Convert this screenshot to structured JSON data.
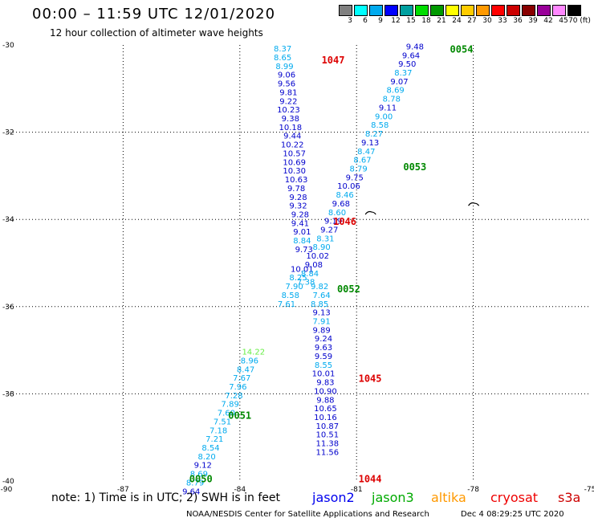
{
  "header": {
    "title": "00:00 – 11:59 UTC 12/01/2020",
    "subtitle": "12 hour collection of altimeter wave heights"
  },
  "colorbar": {
    "colors": [
      "#808080",
      "#00ffff",
      "#00aaee",
      "#0000ff",
      "#00a0a0",
      "#00dd00",
      "#009900",
      "#ffff00",
      "#ffcc00",
      "#ff9900",
      "#ff0000",
      "#cc0000",
      "#880000",
      "#990099",
      "#ff88ff",
      "#000000"
    ],
    "labels": [
      "3",
      "6",
      "9",
      "12",
      "15",
      "18",
      "21",
      "24",
      "27",
      "30",
      "33",
      "36",
      "39",
      "42",
      "45",
      "70 (ft)"
    ]
  },
  "map": {
    "lon_ticks": [
      "-90",
      "-87",
      "-84",
      "-81",
      "-78",
      "-75"
    ],
    "lat_ticks": [
      "-30",
      "-32",
      "-34",
      "-36",
      "-38",
      "-40"
    ],
    "pass_labels": [
      {
        "text": "1047",
        "color": "#dd0000",
        "lon": -81.9,
        "lat": -30.35
      },
      {
        "text": "0054",
        "color": "#008800",
        "lon": -78.6,
        "lat": -30.1
      },
      {
        "text": "0053",
        "color": "#008800",
        "lon": -79.8,
        "lat": -32.8
      },
      {
        "text": "1046",
        "color": "#dd0000",
        "lon": -81.6,
        "lat": -34.05
      },
      {
        "text": "0052",
        "color": "#008800",
        "lon": -81.5,
        "lat": -35.6
      },
      {
        "text": "1045",
        "color": "#dd0000",
        "lon": -80.95,
        "lat": -37.65
      },
      {
        "text": "0051",
        "color": "#008800",
        "lon": -84.3,
        "lat": -38.5
      },
      {
        "text": "0050",
        "color": "#008800",
        "lon": -85.3,
        "lat": -39.95
      },
      {
        "text": "1044",
        "color": "#dd0000",
        "lon": -80.95,
        "lat": -39.95
      }
    ],
    "tracks": [
      {
        "name": "1047",
        "points": [
          {
            "v": "8.37",
            "c": "#00aaee",
            "lon": -82.9,
            "lat": -30.15
          },
          {
            "v": "8.65",
            "c": "#00aaee",
            "lon": -82.9,
            "lat": -30.35
          },
          {
            "v": "8.99",
            "c": "#00aaee",
            "lon": -82.85,
            "lat": -30.55
          },
          {
            "v": "9.06",
            "c": "#0000cc",
            "lon": -82.8,
            "lat": -30.75
          },
          {
            "v": "9.56",
            "c": "#0000cc",
            "lon": -82.8,
            "lat": -30.95
          },
          {
            "v": "9.81",
            "c": "#0000cc",
            "lon": -82.75,
            "lat": -31.15
          },
          {
            "v": "9.22",
            "c": "#0000cc",
            "lon": -82.75,
            "lat": -31.35
          },
          {
            "v": "10.23",
            "c": "#0000cc",
            "lon": -82.75,
            "lat": -31.55
          },
          {
            "v": "9.38",
            "c": "#0000cc",
            "lon": -82.7,
            "lat": -31.75
          },
          {
            "v": "10.18",
            "c": "#0000cc",
            "lon": -82.7,
            "lat": -31.95
          },
          {
            "v": "9.44",
            "c": "#0000cc",
            "lon": -82.65,
            "lat": -32.15
          },
          {
            "v": "10.22",
            "c": "#0000cc",
            "lon": -82.65,
            "lat": -32.35
          },
          {
            "v": "10.57",
            "c": "#0000cc",
            "lon": -82.6,
            "lat": -32.55
          },
          {
            "v": "10.69",
            "c": "#0000cc",
            "lon": -82.6,
            "lat": -32.75
          },
          {
            "v": "10.30",
            "c": "#0000cc",
            "lon": -82.6,
            "lat": -32.95
          },
          {
            "v": "10.63",
            "c": "#0000cc",
            "lon": -82.55,
            "lat": -33.15
          },
          {
            "v": "9.78",
            "c": "#0000cc",
            "lon": -82.55,
            "lat": -33.35
          },
          {
            "v": "9.28",
            "c": "#0000cc",
            "lon": -82.5,
            "lat": -33.55
          },
          {
            "v": "9.32",
            "c": "#0000cc",
            "lon": -82.5,
            "lat": -33.75
          },
          {
            "v": "9.28",
            "c": "#0000cc",
            "lon": -82.45,
            "lat": -33.95
          },
          {
            "v": "9.41",
            "c": "#0000cc",
            "lon": -82.45,
            "lat": -34.15
          },
          {
            "v": "9.01",
            "c": "#0000cc",
            "lon": -82.4,
            "lat": -34.35
          },
          {
            "v": "8.84",
            "c": "#00aaee",
            "lon": -82.4,
            "lat": -34.55
          },
          {
            "v": "9.73",
            "c": "#0000cc",
            "lon": -82.35,
            "lat": -34.75
          },
          {
            "v": "10.01",
            "c": "#0000cc",
            "lon": -82.4,
            "lat": -35.2
          },
          {
            "v": "8.25",
            "c": "#00aaee",
            "lon": -82.5,
            "lat": -35.4
          },
          {
            "v": "7.90",
            "c": "#00aaee",
            "lon": -82.6,
            "lat": -35.6
          },
          {
            "v": "8.58",
            "c": "#00aaee",
            "lon": -82.7,
            "lat": -35.8
          },
          {
            "v": "7.61",
            "c": "#00aaee",
            "lon": -82.8,
            "lat": -36.0
          }
        ]
      },
      {
        "name": "1045",
        "points": [
          {
            "v": "9.82",
            "c": "#00aaee",
            "lon": -81.95,
            "lat": -35.6
          },
          {
            "v": "7.64",
            "c": "#00aaee",
            "lon": -81.9,
            "lat": -35.8
          },
          {
            "v": "8.85",
            "c": "#00aaee",
            "lon": -81.95,
            "lat": -36.0
          },
          {
            "v": "9.13",
            "c": "#0000cc",
            "lon": -81.9,
            "lat": -36.2
          },
          {
            "v": "7.91",
            "c": "#00aaee",
            "lon": -81.9,
            "lat": -36.4
          },
          {
            "v": "9.89",
            "c": "#0000cc",
            "lon": -81.9,
            "lat": -36.6
          },
          {
            "v": "9.24",
            "c": "#0000cc",
            "lon": -81.85,
            "lat": -36.8
          },
          {
            "v": "9.63",
            "c": "#0000cc",
            "lon": -81.85,
            "lat": -37.0
          },
          {
            "v": "9.59",
            "c": "#0000cc",
            "lon": -81.85,
            "lat": -37.2
          },
          {
            "v": "8.55",
            "c": "#00aaee",
            "lon": -81.85,
            "lat": -37.4
          },
          {
            "v": "10.01",
            "c": "#0000cc",
            "lon": -81.85,
            "lat": -37.6
          },
          {
            "v": "9.83",
            "c": "#0000cc",
            "lon": -81.8,
            "lat": -37.8
          },
          {
            "v": "10.90",
            "c": "#0000cc",
            "lon": -81.8,
            "lat": -38.0
          },
          {
            "v": "9.88",
            "c": "#0000cc",
            "lon": -81.8,
            "lat": -38.2
          },
          {
            "v": "10.65",
            "c": "#0000cc",
            "lon": -81.8,
            "lat": -38.4
          },
          {
            "v": "10.16",
            "c": "#0000cc",
            "lon": -81.8,
            "lat": -38.6
          },
          {
            "v": "10.87",
            "c": "#0000cc",
            "lon": -81.75,
            "lat": -38.8
          },
          {
            "v": "10.51",
            "c": "#0000cc",
            "lon": -81.75,
            "lat": -39.0
          },
          {
            "v": "11.38",
            "c": "#0000cc",
            "lon": -81.75,
            "lat": -39.2
          },
          {
            "v": "11.56",
            "c": "#0000cc",
            "lon": -81.75,
            "lat": -39.4
          }
        ]
      },
      {
        "name": "0054",
        "points": [
          {
            "v": "9.48",
            "c": "#0000cc",
            "lon": -79.5,
            "lat": -30.1
          },
          {
            "v": "9.64",
            "c": "#0000cc",
            "lon": -79.6,
            "lat": -30.3
          },
          {
            "v": "9.50",
            "c": "#0000cc",
            "lon": -79.7,
            "lat": -30.5
          },
          {
            "v": "8.37",
            "c": "#00aaee",
            "lon": -79.8,
            "lat": -30.7
          },
          {
            "v": "9.07",
            "c": "#0000cc",
            "lon": -79.9,
            "lat": -30.9
          },
          {
            "v": "8.69",
            "c": "#00aaee",
            "lon": -80.0,
            "lat": -31.1
          },
          {
            "v": "8.78",
            "c": "#00aaee",
            "lon": -80.1,
            "lat": -31.3
          },
          {
            "v": "9.11",
            "c": "#0000cc",
            "lon": -80.2,
            "lat": -31.5
          },
          {
            "v": "9.00",
            "c": "#00aaee",
            "lon": -80.3,
            "lat": -31.7
          },
          {
            "v": "8.58",
            "c": "#00aaee",
            "lon": -80.4,
            "lat": -31.9
          },
          {
            "v": "8.27",
            "c": "#00aaee",
            "lon": -80.55,
            "lat": -32.1
          },
          {
            "v": "9.13",
            "c": "#0000cc",
            "lon": -80.65,
            "lat": -32.3
          },
          {
            "v": "8.47",
            "c": "#00aaee",
            "lon": -80.75,
            "lat": -32.5
          },
          {
            "v": "8.67",
            "c": "#00aaee",
            "lon": -80.85,
            "lat": -32.7
          },
          {
            "v": "8.79",
            "c": "#00aaee",
            "lon": -80.95,
            "lat": -32.9
          },
          {
            "v": "9.75",
            "c": "#0000cc",
            "lon": -81.05,
            "lat": -33.1
          },
          {
            "v": "10.06",
            "c": "#0000cc",
            "lon": -81.2,
            "lat": -33.3
          },
          {
            "v": "8.46",
            "c": "#00aaee",
            "lon": -81.3,
            "lat": -33.5
          },
          {
            "v": "9.68",
            "c": "#0000cc",
            "lon": -81.4,
            "lat": -33.7
          },
          {
            "v": "8.60",
            "c": "#00aaee",
            "lon": -81.5,
            "lat": -33.9
          },
          {
            "v": "9.19",
            "c": "#0000cc",
            "lon": -81.6,
            "lat": -34.1
          },
          {
            "v": "9.27",
            "c": "#0000cc",
            "lon": -81.7,
            "lat": -34.3
          },
          {
            "v": "8.31",
            "c": "#00aaee",
            "lon": -81.8,
            "lat": -34.5
          },
          {
            "v": "8.90",
            "c": "#00aaee",
            "lon": -81.9,
            "lat": -34.7
          },
          {
            "v": "10.02",
            "c": "#0000cc",
            "lon": -82.0,
            "lat": -34.9
          },
          {
            "v": "9.08",
            "c": "#0000cc",
            "lon": -82.1,
            "lat": -35.1
          },
          {
            "v": "8.84",
            "c": "#00aaee",
            "lon": -82.2,
            "lat": -35.3
          },
          {
            "v": "7.38",
            "c": "#00aaee",
            "lon": -82.3,
            "lat": -35.5
          }
        ]
      },
      {
        "name": "0051",
        "points": [
          {
            "v": "14.22",
            "c": "#66ee44",
            "lon": -83.65,
            "lat": -37.1
          },
          {
            "v": "8.96",
            "c": "#00aaee",
            "lon": -83.75,
            "lat": -37.3
          },
          {
            "v": "8.47",
            "c": "#00aaee",
            "lon": -83.85,
            "lat": -37.5
          },
          {
            "v": "7.67",
            "c": "#00aaee",
            "lon": -83.95,
            "lat": -37.7
          },
          {
            "v": "7.96",
            "c": "#00aaee",
            "lon": -84.05,
            "lat": -37.9
          },
          {
            "v": "7.28",
            "c": "#00aaee",
            "lon": -84.15,
            "lat": -38.1
          },
          {
            "v": "7.89",
            "c": "#00aaee",
            "lon": -84.25,
            "lat": -38.3
          },
          {
            "v": "7.60",
            "c": "#00aaee",
            "lon": -84.35,
            "lat": -38.5
          },
          {
            "v": "7.51",
            "c": "#00aaee",
            "lon": -84.45,
            "lat": -38.7
          },
          {
            "v": "7.18",
            "c": "#00aaee",
            "lon": -84.55,
            "lat": -38.9
          },
          {
            "v": "7.21",
            "c": "#00aaee",
            "lon": -84.65,
            "lat": -39.1
          },
          {
            "v": "8.54",
            "c": "#00aaee",
            "lon": -84.75,
            "lat": -39.3
          },
          {
            "v": "8.20",
            "c": "#00aaee",
            "lon": -84.85,
            "lat": -39.5
          },
          {
            "v": "9.12",
            "c": "#0000cc",
            "lon": -84.95,
            "lat": -39.7
          },
          {
            "v": "8.69",
            "c": "#00aaee",
            "lon": -85.05,
            "lat": -39.9
          },
          {
            "v": "8.79",
            "c": "#00aaee",
            "lon": -85.15,
            "lat": -40.1
          },
          {
            "v": "9.64",
            "c": "#0000cc",
            "lon": -85.25,
            "lat": -40.3
          }
        ]
      }
    ],
    "land_patches": [
      {
        "lon": -78.0,
        "lat": -33.65
      },
      {
        "lon": -80.65,
        "lat": -33.85
      }
    ]
  },
  "footer": {
    "note": "note: 1) Time is in UTC; 2) SWH is in feet",
    "satellites": [
      {
        "name": "jason2",
        "color": "#0000ee"
      },
      {
        "name": "jason3",
        "color": "#00aa00"
      },
      {
        "name": "altika",
        "color": "#ff9900"
      },
      {
        "name": "cryosat",
        "color": "#ee0000"
      },
      {
        "name": "s3a",
        "color": "#cc0000"
      }
    ],
    "credit": "NOAA/NESDIS Center for Satellite Applications and Research",
    "timestamp": "Dec  4 08:29:25 UTC 2020"
  }
}
